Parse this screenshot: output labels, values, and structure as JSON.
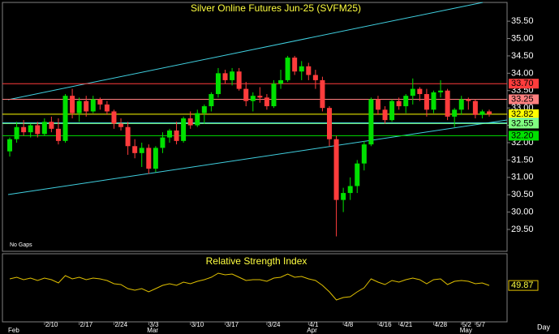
{
  "chart_data": {
    "type": "candlestick",
    "title": "Silver Online Futures Jun-25 (SVFM25)",
    "note": "No Gaps",
    "categories": [
      null,
      null,
      null,
      null,
      null,
      "2/10",
      null,
      null,
      null,
      null,
      "2/17",
      null,
      null,
      null,
      null,
      "2/24",
      null,
      null,
      null,
      null,
      "3/3",
      null,
      null,
      null,
      null,
      null,
      "3/10",
      null,
      null,
      null,
      null,
      "3/17",
      null,
      null,
      null,
      null,
      null,
      "3/24",
      null,
      null,
      null,
      null,
      null,
      "4/1",
      null,
      null,
      null,
      null,
      "4/8",
      null,
      null,
      null,
      null,
      "4/16",
      null,
      null,
      "4/21",
      null,
      null,
      null,
      null,
      "4/28",
      null,
      null,
      null,
      "5/2",
      null,
      "5/7",
      null,
      null
    ],
    "months": [
      {
        "label": "Feb",
        "at": 0
      },
      {
        "label": "Mar",
        "at": 20
      },
      {
        "label": "Apr",
        "at": 43
      },
      {
        "label": "May",
        "at": 65
      }
    ],
    "period_label": "Day",
    "open": [
      31.75,
      32.1,
      32.45,
      32.3,
      32.5,
      32.25,
      32.6,
      32.4,
      32.05,
      33.35,
      32.85,
      33.2,
      32.9,
      33.25,
      33.1,
      32.9,
      32.55,
      32.45,
      31.9,
      31.7,
      31.85,
      31.25,
      31.85,
      32.15,
      32.35,
      32.05,
      32.7,
      32.5,
      32.85,
      33.05,
      33.4,
      34.0,
      33.8,
      34.05,
      33.55,
      33.2,
      33.35,
      33.3,
      33.05,
      33.7,
      33.8,
      34.45,
      34.05,
      34.2,
      33.95,
      33.8,
      33.0,
      32.1,
      30.35,
      30.55,
      30.75,
      31.4,
      31.95,
      33.25,
      32.95,
      32.65,
      33.2,
      33.05,
      33.35,
      33.55,
      33.4,
      32.95,
      33.45,
      33.5,
      32.75,
      32.95,
      33.25,
      33.2,
      32.8,
      32.9
    ],
    "high": [
      32.15,
      32.6,
      32.65,
      32.55,
      32.6,
      32.7,
      32.75,
      32.7,
      33.4,
      33.55,
      33.3,
      33.35,
      33.35,
      33.3,
      33.2,
      32.95,
      32.7,
      32.6,
      32.1,
      32.0,
      31.95,
      31.9,
      32.3,
      32.4,
      32.6,
      32.75,
      32.9,
      32.95,
      33.1,
      33.45,
      34.15,
      34.1,
      34.15,
      34.15,
      33.75,
      33.45,
      33.6,
      33.4,
      33.8,
      34.1,
      34.5,
      34.5,
      34.35,
      34.3,
      34.1,
      33.9,
      33.05,
      32.2,
      30.7,
      31.0,
      31.5,
      32.05,
      33.3,
      33.35,
      33.05,
      33.25,
      33.3,
      33.4,
      33.85,
      33.6,
      33.55,
      33.5,
      33.8,
      33.55,
      33.0,
      33.35,
      33.3,
      33.25,
      32.95,
      32.95
    ],
    "low": [
      31.6,
      32.0,
      32.2,
      32.15,
      32.15,
      32.2,
      32.3,
      31.95,
      32.0,
      32.7,
      32.6,
      32.75,
      32.85,
      32.95,
      32.8,
      32.4,
      32.35,
      31.65,
      31.55,
      31.3,
      31.1,
      31.15,
      31.7,
      32.0,
      31.95,
      32.0,
      32.4,
      32.45,
      32.55,
      32.9,
      33.3,
      33.7,
      33.65,
      33.5,
      33.05,
      32.9,
      33.15,
      32.95,
      33.0,
      33.55,
      33.75,
      33.95,
      33.8,
      33.8,
      33.55,
      32.9,
      31.9,
      29.3,
      30.0,
      30.35,
      30.55,
      31.2,
      31.9,
      32.8,
      32.55,
      32.6,
      32.95,
      32.85,
      33.1,
      33.2,
      32.75,
      32.85,
      33.3,
      32.65,
      32.45,
      32.8,
      32.95,
      32.7,
      32.7,
      32.75
    ],
    "close": [
      32.1,
      32.45,
      32.3,
      32.5,
      32.25,
      32.6,
      32.4,
      32.05,
      33.35,
      32.85,
      33.2,
      32.9,
      33.25,
      33.1,
      32.9,
      32.55,
      32.45,
      31.9,
      31.7,
      31.85,
      31.25,
      31.85,
      32.15,
      32.35,
      32.05,
      32.7,
      32.5,
      32.85,
      33.05,
      33.4,
      34.0,
      33.8,
      34.05,
      33.55,
      33.2,
      33.35,
      33.3,
      33.05,
      33.7,
      33.8,
      34.45,
      34.05,
      34.2,
      33.95,
      33.8,
      33.0,
      32.1,
      30.35,
      30.55,
      30.75,
      31.4,
      31.95,
      33.25,
      32.95,
      32.65,
      33.2,
      33.05,
      33.35,
      33.55,
      33.4,
      32.95,
      33.45,
      33.5,
      32.75,
      32.95,
      33.25,
      33.2,
      32.8,
      32.9,
      32.82
    ],
    "up_color": "#00e000",
    "down_color": "#ff3c3c",
    "ylim": [
      28.87,
      36.04
    ],
    "yticks": [
      {
        "value": 29.5,
        "label": "29.50"
      },
      {
        "value": 30,
        "label": "30.00"
      },
      {
        "value": 30.5,
        "label": "30.50"
      },
      {
        "value": 31,
        "label": "31.00"
      },
      {
        "value": 31.5,
        "label": "31.50"
      },
      {
        "value": 32,
        "label": "32.00"
      },
      {
        "value": 32.5,
        "label": "32.50"
      },
      {
        "value": 33,
        "label": "33.00"
      },
      {
        "value": 33.5,
        "label": "33.50"
      },
      {
        "value": 34,
        "label": "34.00"
      },
      {
        "value": 34.5,
        "label": "34.50"
      },
      {
        "value": 35,
        "label": "35.00"
      },
      {
        "value": 35.5,
        "label": "35.50"
      }
    ],
    "levels": [
      {
        "value": 33.7,
        "label": "33.70",
        "color": "#ff3c3c"
      },
      {
        "value": 33.25,
        "label": "33.25",
        "color": "#ff8080"
      },
      {
        "value": 32.82,
        "label": "32.82",
        "color": "#ffff00"
      },
      {
        "value": 32.57,
        "label": "32.57",
        "color": "#40e0ff"
      },
      {
        "value": 32.55,
        "label": "32.55",
        "color": "#80ff80"
      },
      {
        "value": 32.2,
        "label": "32.20",
        "color": "#00e000"
      }
    ],
    "rsi": {
      "title": "Relative Strength Index",
      "color": "#e0c000",
      "values": [
        58,
        60,
        57,
        59,
        56,
        59,
        57,
        53,
        62,
        58,
        60,
        57,
        59,
        58,
        56,
        52,
        51,
        46,
        44,
        46,
        42,
        46,
        50,
        52,
        50,
        54,
        52,
        55,
        57,
        60,
        65,
        63,
        64,
        60,
        56,
        57,
        57,
        55,
        59,
        60,
        64,
        60,
        61,
        58,
        56,
        50,
        42,
        32,
        35,
        36,
        42,
        47,
        58,
        54,
        51,
        56,
        54,
        57,
        59,
        57,
        52,
        57,
        58,
        51,
        55,
        56,
        55,
        52,
        53,
        49.87
      ]
    }
  }
}
